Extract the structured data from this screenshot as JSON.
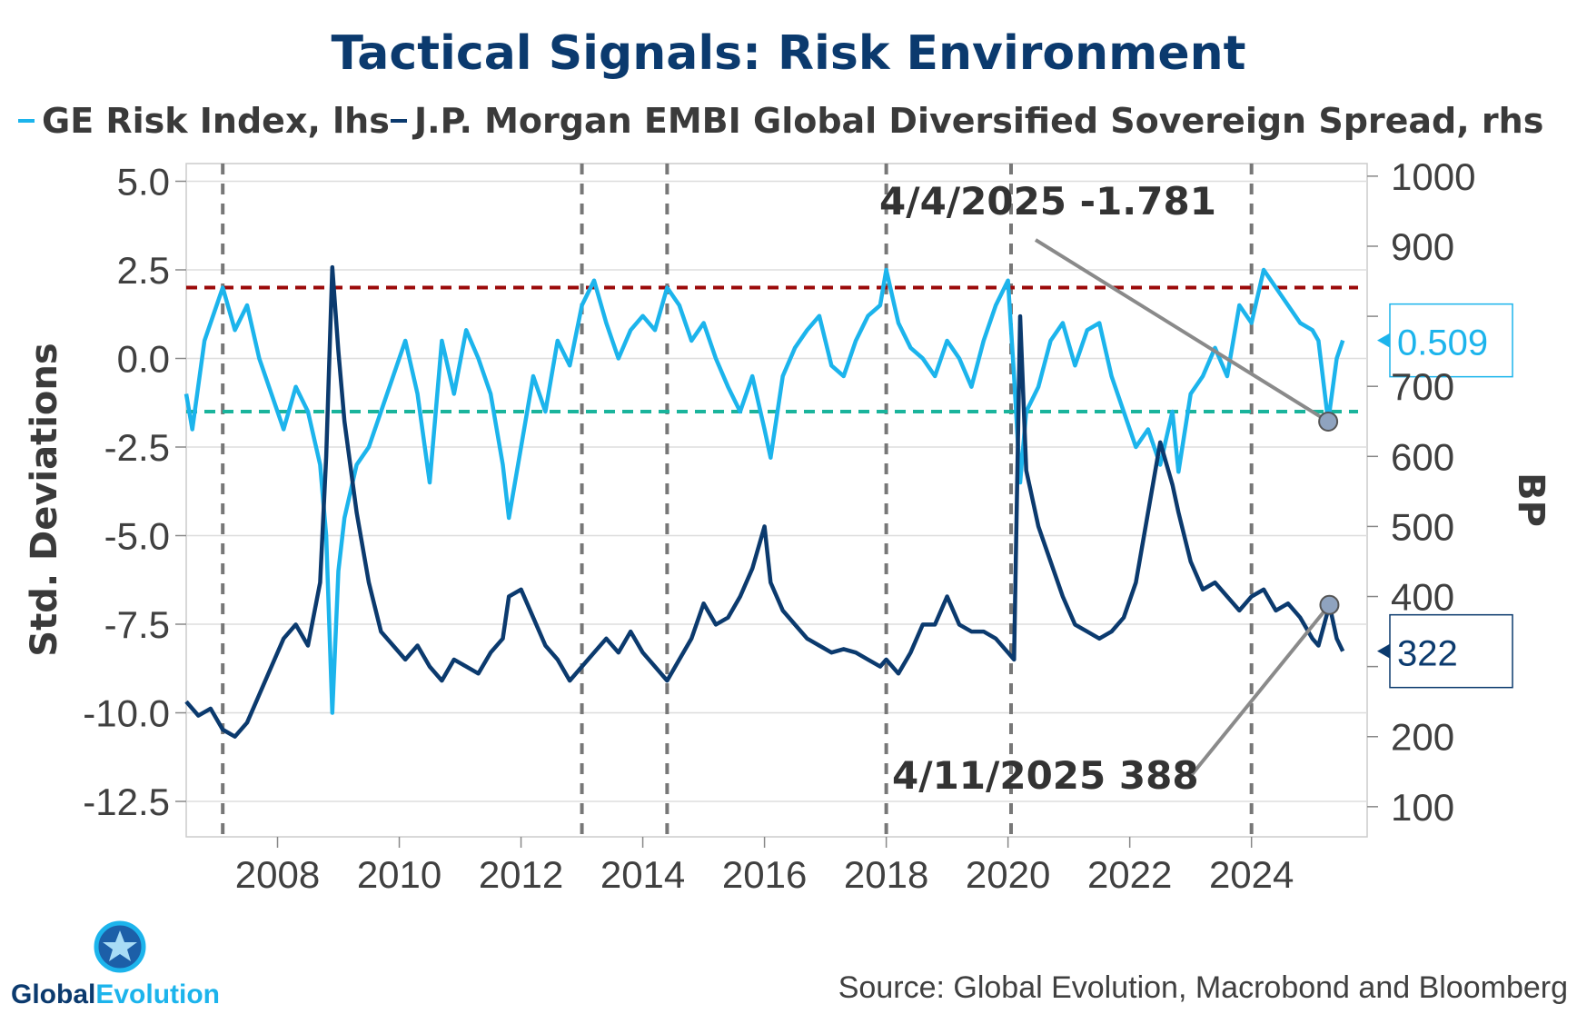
{
  "chart_data": {
    "type": "line",
    "title": "Tactical Signals: Risk Environment",
    "legend": [
      {
        "label": "GE Risk Index, lhs",
        "color": "#1cb4ec"
      },
      {
        "label": "J.P. Morgan EMBI Global Diversified Sovereign Spread, rhs",
        "color": "#0b3a6e"
      }
    ],
    "ylabel_left": "Std. Deviations",
    "ylabel_right": "BP",
    "x_range": [
      2006.5,
      2025.9
    ],
    "x_ticks": [
      2008,
      2010,
      2012,
      2014,
      2016,
      2018,
      2020,
      2022,
      2024
    ],
    "x_tick_labels": [
      "2008",
      "2010",
      "2012",
      "2014",
      "2016",
      "2018",
      "2020",
      "2022",
      "2024"
    ],
    "y_left_range": [
      -13.5,
      5.5
    ],
    "y_left_ticks": [
      5.0,
      2.5,
      0.0,
      -2.5,
      -5.0,
      -7.5,
      -10.0,
      -12.5
    ],
    "y_left_tick_labels": [
      "5.0",
      "2.5",
      "0.0",
      "-2.5",
      "-5.0",
      "-7.5",
      "-10.0",
      "-12.5"
    ],
    "y_right_range": [
      57,
      1018
    ],
    "y_right_ticks": [
      1000,
      900,
      800,
      700,
      600,
      500,
      400,
      300,
      200,
      100
    ],
    "y_right_tick_labels": [
      "1000",
      "900",
      "",
      "700",
      "600",
      "500",
      "400",
      "",
      "200",
      "100"
    ],
    "threshold_high": 2.0,
    "threshold_low": -1.5,
    "vertical_markers": [
      2007.1,
      2013.0,
      2014.4,
      2018.0,
      2020.05,
      2024.0
    ],
    "series": [
      {
        "name": "GE Risk Index, lhs",
        "axis": "left",
        "color": "#1cb4ec",
        "x": [
          2006.5,
          2006.6,
          2006.8,
          2007.0,
          2007.1,
          2007.3,
          2007.5,
          2007.7,
          2007.9,
          2008.1,
          2008.3,
          2008.5,
          2008.7,
          2008.8,
          2008.9,
          2009.0,
          2009.1,
          2009.3,
          2009.5,
          2009.7,
          2009.9,
          2010.1,
          2010.3,
          2010.5,
          2010.7,
          2010.9,
          2011.1,
          2011.3,
          2011.5,
          2011.7,
          2011.8,
          2012.0,
          2012.2,
          2012.4,
          2012.6,
          2012.8,
          2013.0,
          2013.2,
          2013.4,
          2013.6,
          2013.8,
          2014.0,
          2014.2,
          2014.4,
          2014.6,
          2014.8,
          2015.0,
          2015.2,
          2015.4,
          2015.6,
          2015.8,
          2016.0,
          2016.1,
          2016.3,
          2016.5,
          2016.7,
          2016.9,
          2017.1,
          2017.3,
          2017.5,
          2017.7,
          2017.9,
          2018.0,
          2018.2,
          2018.4,
          2018.6,
          2018.8,
          2019.0,
          2019.2,
          2019.4,
          2019.6,
          2019.8,
          2020.0,
          2020.1,
          2020.2,
          2020.3,
          2020.5,
          2020.7,
          2020.9,
          2021.1,
          2021.3,
          2021.5,
          2021.7,
          2021.9,
          2022.1,
          2022.3,
          2022.5,
          2022.7,
          2022.8,
          2023.0,
          2023.2,
          2023.4,
          2023.6,
          2023.8,
          2024.0,
          2024.2,
          2024.4,
          2024.6,
          2024.8,
          2025.0,
          2025.1,
          2025.26,
          2025.4,
          2025.5
        ],
        "values": [
          -1.0,
          -2.0,
          0.5,
          1.5,
          2.0,
          0.8,
          1.5,
          0.0,
          -1.0,
          -2.0,
          -0.8,
          -1.5,
          -3.0,
          -5.0,
          -10.0,
          -6.0,
          -4.5,
          -3.0,
          -2.5,
          -1.5,
          -0.5,
          0.5,
          -1.0,
          -3.5,
          0.5,
          -1.0,
          0.8,
          0.0,
          -1.0,
          -3.0,
          -4.5,
          -2.5,
          -0.5,
          -1.5,
          0.5,
          -0.2,
          1.5,
          2.2,
          1.0,
          0.0,
          0.8,
          1.2,
          0.8,
          2.0,
          1.5,
          0.5,
          1.0,
          0.0,
          -0.8,
          -1.5,
          -0.5,
          -2.0,
          -2.8,
          -0.5,
          0.3,
          0.8,
          1.2,
          -0.2,
          -0.5,
          0.5,
          1.2,
          1.5,
          2.5,
          1.0,
          0.3,
          0.0,
          -0.5,
          0.5,
          0.0,
          -0.8,
          0.5,
          1.5,
          2.2,
          -0.5,
          -3.5,
          -1.5,
          -0.8,
          0.5,
          1.0,
          -0.2,
          0.8,
          1.0,
          -0.5,
          -1.5,
          -2.5,
          -2.0,
          -3.0,
          -1.5,
          -3.2,
          -1.0,
          -0.5,
          0.3,
          -0.5,
          1.5,
          1.0,
          2.5,
          2.0,
          1.5,
          1.0,
          0.8,
          0.5,
          -1.781,
          0.0,
          0.509
        ]
      },
      {
        "name": "J.P. Morgan EMBI Global Diversified Sovereign Spread, rhs",
        "axis": "right",
        "color": "#0b3a6e",
        "x": [
          2006.5,
          2006.7,
          2006.9,
          2007.1,
          2007.3,
          2007.5,
          2007.7,
          2007.9,
          2008.1,
          2008.3,
          2008.5,
          2008.7,
          2008.8,
          2008.9,
          2009.0,
          2009.1,
          2009.3,
          2009.5,
          2009.7,
          2009.9,
          2010.1,
          2010.3,
          2010.5,
          2010.7,
          2010.9,
          2011.1,
          2011.3,
          2011.5,
          2011.7,
          2011.8,
          2012.0,
          2012.2,
          2012.4,
          2012.6,
          2012.8,
          2013.0,
          2013.2,
          2013.4,
          2013.6,
          2013.8,
          2014.0,
          2014.2,
          2014.4,
          2014.6,
          2014.8,
          2015.0,
          2015.2,
          2015.4,
          2015.6,
          2015.8,
          2016.0,
          2016.1,
          2016.3,
          2016.5,
          2016.7,
          2016.9,
          2017.1,
          2017.3,
          2017.5,
          2017.7,
          2017.9,
          2018.0,
          2018.2,
          2018.4,
          2018.6,
          2018.8,
          2019.0,
          2019.2,
          2019.4,
          2019.6,
          2019.8,
          2020.0,
          2020.1,
          2020.2,
          2020.3,
          2020.5,
          2020.7,
          2020.9,
          2021.1,
          2021.3,
          2021.5,
          2021.7,
          2021.9,
          2022.1,
          2022.3,
          2022.5,
          2022.7,
          2022.8,
          2023.0,
          2023.2,
          2023.4,
          2023.6,
          2023.8,
          2024.0,
          2024.2,
          2024.4,
          2024.6,
          2024.8,
          2025.0,
          2025.1,
          2025.28,
          2025.4,
          2025.5
        ],
        "values": [
          250,
          230,
          240,
          210,
          200,
          220,
          260,
          300,
          340,
          360,
          330,
          420,
          600,
          870,
          750,
          650,
          520,
          420,
          350,
          330,
          310,
          330,
          300,
          280,
          310,
          300,
          290,
          320,
          340,
          400,
          410,
          370,
          330,
          310,
          280,
          300,
          320,
          340,
          320,
          350,
          320,
          300,
          280,
          310,
          340,
          390,
          360,
          370,
          400,
          440,
          500,
          420,
          380,
          360,
          340,
          330,
          320,
          325,
          320,
          310,
          300,
          310,
          290,
          320,
          360,
          360,
          400,
          360,
          350,
          350,
          340,
          320,
          310,
          800,
          580,
          500,
          450,
          400,
          360,
          350,
          340,
          350,
          370,
          420,
          520,
          620,
          560,
          520,
          450,
          410,
          420,
          400,
          380,
          400,
          410,
          380,
          390,
          370,
          340,
          330,
          388,
          340,
          322
        ]
      }
    ],
    "annotations": [
      {
        "text": "4/4/2025 -1.781",
        "series": 0,
        "x": 2025.26,
        "y": -1.781
      },
      {
        "text": "4/11/2025 388",
        "series": 1,
        "x": 2025.28,
        "y": 388
      }
    ],
    "last_value_boxes": [
      {
        "text": "0.509",
        "series": 0,
        "y": 0.509
      },
      {
        "text": "322",
        "series": 1,
        "y": 322
      }
    ]
  },
  "footer": {
    "source": "Source: Global Evolution, Macrobond and Bloomberg",
    "logo_text_part1": "Global",
    "logo_text_part2": "Evolution"
  },
  "colors": {
    "threshold_high": "#9b0a0a",
    "threshold_low": "#1ab49c",
    "marker": "#777777",
    "grid": "#dddddd"
  }
}
